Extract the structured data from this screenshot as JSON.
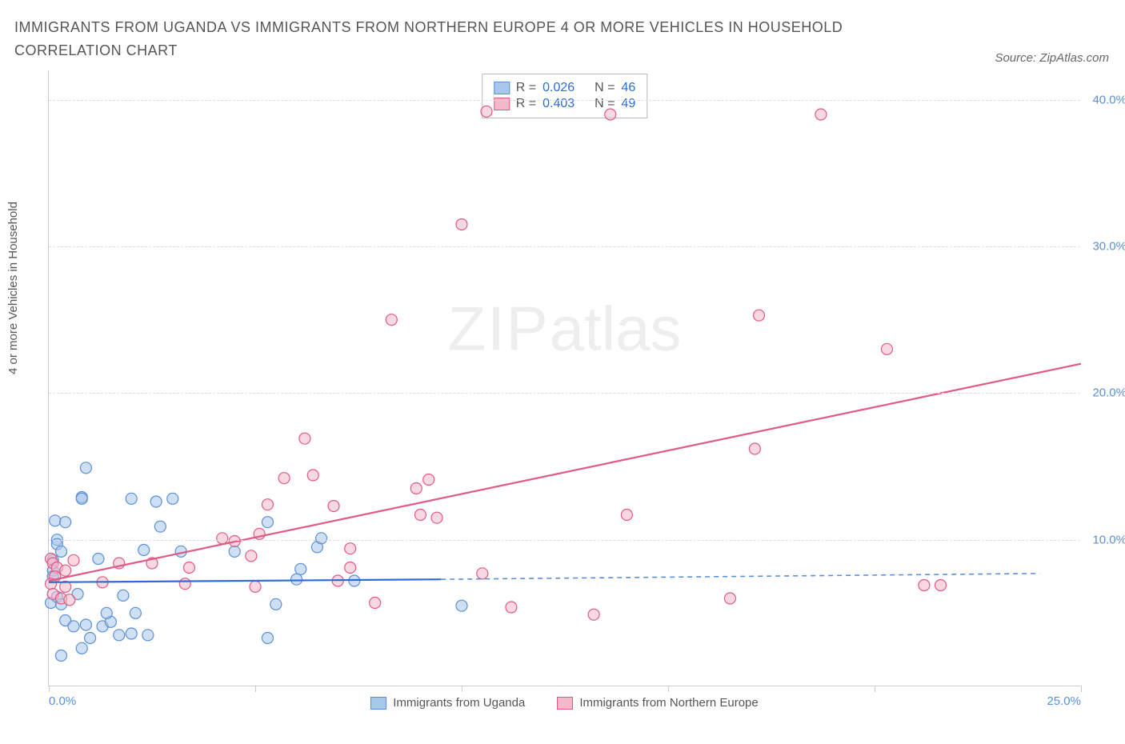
{
  "title": "IMMIGRANTS FROM UGANDA VS IMMIGRANTS FROM NORTHERN EUROPE 4 OR MORE VEHICLES IN HOUSEHOLD CORRELATION CHART",
  "source": "Source: ZipAtlas.com",
  "ylabel": "4 or more Vehicles in Household",
  "watermark_main": "ZIP",
  "watermark_sub": "atlas",
  "chart": {
    "type": "scatter",
    "xlim": [
      0,
      25
    ],
    "ylim": [
      0,
      42
    ],
    "xticks": [
      0,
      5,
      10,
      15,
      20,
      25
    ],
    "xtick_labels": [
      "0.0%",
      "",
      "",
      "",
      "",
      "25.0%"
    ],
    "yticks": [
      10,
      20,
      30,
      40
    ],
    "ytick_labels": [
      "10.0%",
      "20.0%",
      "30.0%",
      "40.0%"
    ],
    "background_color": "#ffffff",
    "grid_color": "#dddddd",
    "axis_color": "#cccccc",
    "marker_radius": 7,
    "marker_stroke_width": 1.2,
    "series": [
      {
        "name": "Immigrants from Uganda",
        "color_fill": "#a8c7ec",
        "color_stroke": "#5b8fd6",
        "fill_opacity": 0.55,
        "R": "0.026",
        "N": "46",
        "trend": {
          "x1": 0,
          "y1": 7.1,
          "x2": 9.5,
          "y2": 7.3,
          "x2_ext": 24,
          "y2_ext": 7.7,
          "solid_color": "#2e6bd6",
          "dash_color": "#5b8fd6"
        },
        "points": [
          [
            0.1,
            8.6
          ],
          [
            0.1,
            7.9
          ],
          [
            0.9,
            14.9
          ],
          [
            0.8,
            12.9
          ],
          [
            0.8,
            12.8
          ],
          [
            2.0,
            12.8
          ],
          [
            0.1,
            7.5
          ],
          [
            0.15,
            11.3
          ],
          [
            0.4,
            11.2
          ],
          [
            0.2,
            10.0
          ],
          [
            0.2,
            9.7
          ],
          [
            0.3,
            9.2
          ],
          [
            0.05,
            5.7
          ],
          [
            0.2,
            6.1
          ],
          [
            0.3,
            5.6
          ],
          [
            0.7,
            6.3
          ],
          [
            1.8,
            6.2
          ],
          [
            2.7,
            10.9
          ],
          [
            1.2,
            8.7
          ],
          [
            2.3,
            9.3
          ],
          [
            3.2,
            9.2
          ],
          [
            0.4,
            4.5
          ],
          [
            0.6,
            4.1
          ],
          [
            0.9,
            4.2
          ],
          [
            1.3,
            4.1
          ],
          [
            1.5,
            4.4
          ],
          [
            1.7,
            3.5
          ],
          [
            2.0,
            3.6
          ],
          [
            2.4,
            3.5
          ],
          [
            0.8,
            2.6
          ],
          [
            2.6,
            12.6
          ],
          [
            3.0,
            12.8
          ],
          [
            4.5,
            9.2
          ],
          [
            5.5,
            5.6
          ],
          [
            5.3,
            11.2
          ],
          [
            6.0,
            7.3
          ],
          [
            6.5,
            9.5
          ],
          [
            6.1,
            8.0
          ],
          [
            7.4,
            7.2
          ],
          [
            5.3,
            3.3
          ],
          [
            6.6,
            10.1
          ],
          [
            10.0,
            5.5
          ],
          [
            0.3,
            2.1
          ],
          [
            1.0,
            3.3
          ],
          [
            1.4,
            5.0
          ],
          [
            2.1,
            5.0
          ]
        ]
      },
      {
        "name": "Immigrants from Northern Europe",
        "color_fill": "#f4b8c8",
        "color_stroke": "#e05a84",
        "fill_opacity": 0.55,
        "R": "0.403",
        "N": "49",
        "trend": {
          "x1": 0,
          "y1": 7.2,
          "x2": 25,
          "y2": 22.0,
          "solid_color": "#e05a84"
        },
        "points": [
          [
            0.05,
            8.7
          ],
          [
            0.1,
            8.4
          ],
          [
            0.2,
            8.1
          ],
          [
            0.15,
            7.5
          ],
          [
            0.05,
            7.0
          ],
          [
            0.1,
            6.3
          ],
          [
            0.3,
            6.0
          ],
          [
            0.4,
            6.8
          ],
          [
            0.4,
            7.9
          ],
          [
            0.6,
            8.6
          ],
          [
            0.5,
            5.9
          ],
          [
            1.3,
            7.1
          ],
          [
            1.7,
            8.4
          ],
          [
            2.5,
            8.4
          ],
          [
            3.3,
            7.0
          ],
          [
            3.4,
            8.1
          ],
          [
            4.2,
            10.1
          ],
          [
            4.5,
            9.9
          ],
          [
            4.9,
            8.9
          ],
          [
            5.0,
            6.8
          ],
          [
            5.1,
            10.4
          ],
          [
            5.3,
            12.4
          ],
          [
            5.7,
            14.2
          ],
          [
            6.2,
            16.9
          ],
          [
            6.4,
            14.4
          ],
          [
            6.9,
            12.3
          ],
          [
            7.0,
            7.2
          ],
          [
            7.3,
            8.1
          ],
          [
            7.3,
            9.4
          ],
          [
            7.9,
            5.7
          ],
          [
            8.9,
            13.5
          ],
          [
            9.0,
            11.7
          ],
          [
            9.2,
            14.1
          ],
          [
            9.4,
            11.5
          ],
          [
            10.5,
            7.7
          ],
          [
            10.6,
            39.2
          ],
          [
            11.2,
            5.4
          ],
          [
            13.2,
            4.9
          ],
          [
            13.6,
            39.0
          ],
          [
            14.0,
            11.7
          ],
          [
            8.3,
            25.0
          ],
          [
            10.0,
            31.5
          ],
          [
            17.2,
            25.3
          ],
          [
            16.5,
            6.0
          ],
          [
            17.1,
            16.2
          ],
          [
            18.7,
            39.0
          ],
          [
            20.3,
            23.0
          ],
          [
            21.2,
            6.9
          ],
          [
            21.6,
            6.9
          ]
        ]
      }
    ]
  },
  "legend_bottom": [
    {
      "swatch_fill": "#a8c7ec",
      "swatch_stroke": "#5b8fd6",
      "label": "Immigrants from Uganda"
    },
    {
      "swatch_fill": "#f4b8c8",
      "swatch_stroke": "#e05a84",
      "label": "Immigrants from Northern Europe"
    }
  ],
  "stats_box": [
    {
      "swatch_fill": "#a8c7ec",
      "swatch_stroke": "#5b8fd6",
      "r_label": "R =",
      "r_val": "0.026",
      "n_label": "N =",
      "n_val": "46"
    },
    {
      "swatch_fill": "#f4b8c8",
      "swatch_stroke": "#e05a84",
      "r_label": "R =",
      "r_val": "0.403",
      "n_label": "N =",
      "n_val": "49"
    }
  ]
}
